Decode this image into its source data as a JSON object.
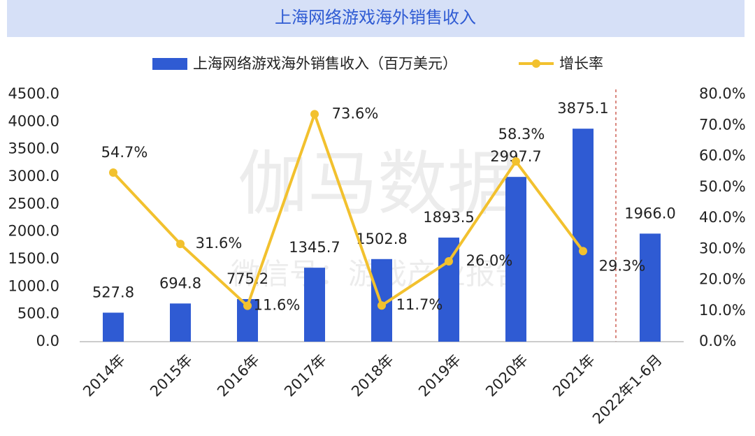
{
  "chart_data": {
    "type": "bar_line",
    "title": "上海网络游戏海外销售收入",
    "watermark": [
      "伽马数据",
      "微信号：游戏产业报告"
    ],
    "categories": [
      "2014年",
      "2015年",
      "2016年",
      "2017年",
      "2018年",
      "2019年",
      "2020年",
      "2021年",
      "2022年1-6月"
    ],
    "series": [
      {
        "name": "上海网络游戏海外销售收入（百万美元）",
        "type": "bar",
        "color": "#2f5bd3",
        "values": [
          527.8,
          694.8,
          775.2,
          1345.7,
          1502.8,
          1893.5,
          2997.7,
          3875.1,
          1966.0
        ],
        "value_labels": [
          "527.8",
          "694.8",
          "775.2",
          "1345.7",
          "1502.8",
          "1893.5",
          "2997.7",
          "3875.1",
          "1966.0"
        ]
      },
      {
        "name": "增长率",
        "type": "line",
        "axis": "y2",
        "color": "#f2c12e",
        "values": [
          54.7,
          31.6,
          11.6,
          73.6,
          11.7,
          26.0,
          58.3,
          29.3,
          null
        ],
        "value_labels": [
          "54.7%",
          "31.6%",
          "11.6%",
          "73.6%",
          "11.7%",
          "26.0%",
          "58.3%",
          "29.3%",
          null
        ]
      }
    ],
    "ylim": [
      0,
      4500
    ],
    "yticks": [
      {
        "value": 0,
        "label": "0.0"
      },
      {
        "value": 500,
        "label": "500.0"
      },
      {
        "value": 1000,
        "label": "1000.0"
      },
      {
        "value": 1500,
        "label": "1500.0"
      },
      {
        "value": 2000,
        "label": "2000.0"
      },
      {
        "value": 2500,
        "label": "2500.0"
      },
      {
        "value": 3000,
        "label": "3000.0"
      },
      {
        "value": 3500,
        "label": "3500.0"
      },
      {
        "value": 4000,
        "label": "4000.0"
      },
      {
        "value": 4500,
        "label": "4500.0"
      }
    ],
    "y2lim": [
      0,
      80
    ],
    "y2ticks": [
      {
        "value": 0,
        "label": "0.0%"
      },
      {
        "value": 10,
        "label": "10.0%"
      },
      {
        "value": 20,
        "label": "20.0%"
      },
      {
        "value": 30,
        "label": "30.0%"
      },
      {
        "value": 40,
        "label": "40.0%"
      },
      {
        "value": 50,
        "label": "50.0%"
      },
      {
        "value": 60,
        "label": "60.0%"
      },
      {
        "value": 70,
        "label": "70.0%"
      },
      {
        "value": 80,
        "label": "80.0%"
      }
    ],
    "grid": false,
    "legend": "top"
  }
}
